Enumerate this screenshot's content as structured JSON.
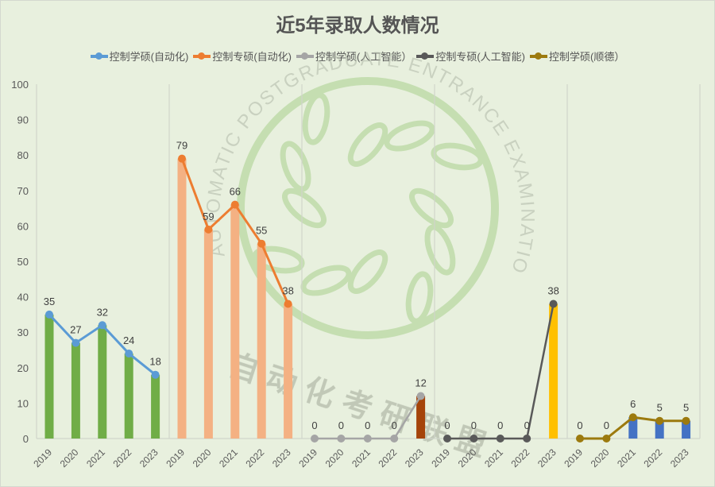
{
  "title": "近5年录取人数情况",
  "legend": [
    {
      "label": "控制学硕(自动化)",
      "color": "#5b9bd5"
    },
    {
      "label": "控制专硕(自动化)",
      "color": "#ed7d31"
    },
    {
      "label": "控制学硕(人工智能）",
      "color": "#a5a5a5"
    },
    {
      "label": "控制专硕(人工智能)",
      "color": "#595959"
    },
    {
      "label": "控制学硕(顺德）",
      "color": "#9c7a0e"
    }
  ],
  "watermark": {
    "ring_text": "AUTOMATIC POSTGRADUATE ENTRANCE EXAMINATION ALLIANCE",
    "cn_text": "自动化考研联盟"
  },
  "chart_data": {
    "type": "bar+line",
    "title": "近5年录取人数情况",
    "xlabel": "",
    "ylabel": "",
    "ylim": [
      0,
      100
    ],
    "yticks": [
      0,
      10,
      20,
      30,
      40,
      50,
      60,
      70,
      80,
      90,
      100
    ],
    "grid": "vertical group separators",
    "legend_position": "top",
    "categories": [
      "2019",
      "2020",
      "2021",
      "2022",
      "2023"
    ],
    "groups": [
      {
        "name": "控制学硕(自动化)",
        "bar_color": "#70ad47",
        "line_color": "#5b9bd5",
        "values": [
          35,
          27,
          32,
          24,
          18
        ]
      },
      {
        "name": "控制专硕(自动化)",
        "bar_color": "#f4b183",
        "line_color": "#ed7d31",
        "values": [
          79,
          59,
          66,
          55,
          38
        ]
      },
      {
        "name": "控制学硕(人工智能）",
        "bar_color": "#a5440a",
        "line_color": "#a5a5a5",
        "values": [
          0,
          0,
          0,
          0,
          12
        ]
      },
      {
        "name": "控制专硕(人工智能)",
        "bar_color": "#ffc000",
        "line_color": "#595959",
        "values": [
          0,
          0,
          0,
          0,
          38
        ]
      },
      {
        "name": "控制学硕(顺德）",
        "bar_color": "#4472c4",
        "line_color": "#9c7a0e",
        "values": [
          0,
          0,
          6,
          5,
          5
        ]
      }
    ]
  }
}
